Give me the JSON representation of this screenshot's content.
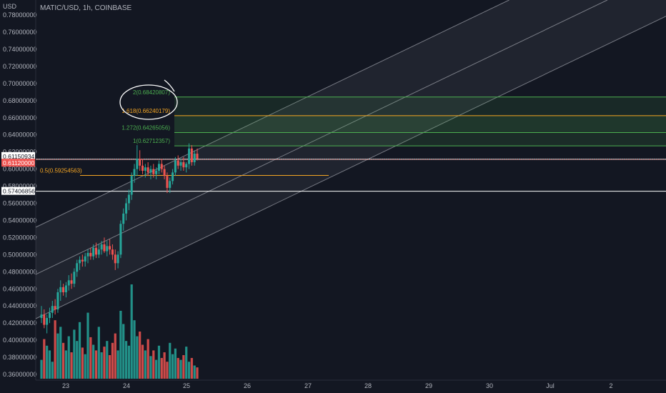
{
  "header": {
    "symbol": "MATIC/USD, 1h, COINBASE",
    "currency": "USD"
  },
  "colors": {
    "background": "#131722",
    "up": "#26a69a",
    "down": "#ef5350",
    "channel": "#d1d4dc",
    "fib_green": "#4caf50",
    "fib_orange": "#f5a623",
    "axis_text": "#b2b5be"
  },
  "chart_data": {
    "type": "candlestick",
    "ylim": [
      0.355,
      0.785
    ],
    "y_ticks": [
      "0.78000000",
      "0.76000000",
      "0.74000000",
      "0.72000000",
      "0.70000000",
      "0.68000000",
      "0.66000000",
      "0.64000000",
      "0.62000000",
      "0.60000000",
      "0.58000000",
      "0.56000000",
      "0.54000000",
      "0.52000000",
      "0.50000000",
      "0.48000000",
      "0.46000000",
      "0.44000000",
      "0.42000000",
      "0.40000000",
      "0.38000000",
      "0.36000000"
    ],
    "x_ticks": [
      "23",
      "24",
      "25",
      "26",
      "27",
      "28",
      "29",
      "30",
      "Jul",
      "2"
    ],
    "price_labels": [
      {
        "text": "0.61150934",
        "style": "white"
      },
      {
        "text": "0.61120000",
        "style": "red"
      },
      {
        "text": "0.57406856",
        "style": "white"
      }
    ],
    "fib_levels": [
      {
        "label": "2(0.68420807)",
        "value": 0.68420807,
        "color": "green"
      },
      {
        "label": "1.618(0.66240179)",
        "value": 0.66240179,
        "color": "orange"
      },
      {
        "label": "1.272(0.64265056)",
        "value": 0.64265056,
        "color": "green"
      },
      {
        "label": "1(0.62712357)",
        "value": 0.62712357,
        "color": "green"
      },
      {
        "label": "0.5(0.59254563)",
        "value": 0.59254563,
        "color": "orange"
      }
    ],
    "horizontal_lines": [
      0.61150934,
      0.57406856
    ],
    "candles": [
      [
        0.426,
        0.44,
        0.42,
        0.43
      ],
      [
        0.43,
        0.436,
        0.414,
        0.418
      ],
      [
        0.418,
        0.43,
        0.408,
        0.426
      ],
      [
        0.426,
        0.438,
        0.42,
        0.432
      ],
      [
        0.432,
        0.446,
        0.426,
        0.44
      ],
      [
        0.44,
        0.448,
        0.43,
        0.436
      ],
      [
        0.436,
        0.46,
        0.432,
        0.456
      ],
      [
        0.456,
        0.47,
        0.446,
        0.462
      ],
      [
        0.462,
        0.466,
        0.452,
        0.456
      ],
      [
        0.456,
        0.468,
        0.45,
        0.464
      ],
      [
        0.464,
        0.476,
        0.458,
        0.47
      ],
      [
        0.47,
        0.478,
        0.46,
        0.466
      ],
      [
        0.466,
        0.484,
        0.462,
        0.48
      ],
      [
        0.48,
        0.494,
        0.474,
        0.49
      ],
      [
        0.49,
        0.498,
        0.482,
        0.494
      ],
      [
        0.494,
        0.5,
        0.486,
        0.492
      ],
      [
        0.492,
        0.502,
        0.486,
        0.498
      ],
      [
        0.498,
        0.506,
        0.49,
        0.502
      ],
      [
        0.502,
        0.508,
        0.494,
        0.498
      ],
      [
        0.498,
        0.512,
        0.494,
        0.508
      ],
      [
        0.508,
        0.514,
        0.496,
        0.5
      ],
      [
        0.5,
        0.512,
        0.496,
        0.506
      ],
      [
        0.506,
        0.516,
        0.5,
        0.512
      ],
      [
        0.512,
        0.52,
        0.502,
        0.504
      ],
      [
        0.504,
        0.516,
        0.498,
        0.51
      ],
      [
        0.51,
        0.518,
        0.5,
        0.506
      ],
      [
        0.506,
        0.512,
        0.494,
        0.5
      ],
      [
        0.5,
        0.506,
        0.482,
        0.49
      ],
      [
        0.49,
        0.504,
        0.484,
        0.5
      ],
      [
        0.5,
        0.54,
        0.496,
        0.536
      ],
      [
        0.536,
        0.554,
        0.528,
        0.548
      ],
      [
        0.548,
        0.566,
        0.54,
        0.56
      ],
      [
        0.56,
        0.576,
        0.552,
        0.57
      ],
      [
        0.57,
        0.596,
        0.564,
        0.592
      ],
      [
        0.592,
        0.606,
        0.584,
        0.6
      ],
      [
        0.6,
        0.628,
        0.592,
        0.612
      ],
      [
        0.612,
        0.622,
        0.598,
        0.604
      ],
      [
        0.604,
        0.612,
        0.594,
        0.598
      ],
      [
        0.598,
        0.606,
        0.59,
        0.602
      ],
      [
        0.602,
        0.608,
        0.592,
        0.596
      ],
      [
        0.596,
        0.604,
        0.588,
        0.6
      ],
      [
        0.6,
        0.606,
        0.59,
        0.594
      ],
      [
        0.594,
        0.602,
        0.588,
        0.598
      ],
      [
        0.598,
        0.61,
        0.594,
        0.606
      ],
      [
        0.606,
        0.612,
        0.596,
        0.6
      ],
      [
        0.6,
        0.604,
        0.588,
        0.592
      ],
      [
        0.592,
        0.596,
        0.572,
        0.578
      ],
      [
        0.578,
        0.59,
        0.572,
        0.586
      ],
      [
        0.586,
        0.6,
        0.582,
        0.596
      ],
      [
        0.596,
        0.614,
        0.592,
        0.61
      ],
      [
        0.61,
        0.616,
        0.6,
        0.604
      ],
      [
        0.604,
        0.612,
        0.598,
        0.608
      ],
      [
        0.608,
        0.614,
        0.598,
        0.602
      ],
      [
        0.602,
        0.608,
        0.596,
        0.606
      ],
      [
        0.606,
        0.63,
        0.6,
        0.624
      ],
      [
        0.624,
        0.628,
        0.604,
        0.608
      ],
      [
        0.608,
        0.622,
        0.604,
        0.618
      ],
      [
        0.618,
        0.624,
        0.61,
        0.612
      ]
    ],
    "volumes": [
      0.2,
      0.42,
      0.35,
      0.3,
      0.18,
      0.62,
      0.48,
      0.55,
      0.38,
      0.3,
      0.45,
      0.28,
      0.52,
      0.4,
      0.6,
      0.33,
      0.26,
      0.7,
      0.44,
      0.36,
      0.3,
      0.55,
      0.28,
      0.34,
      0.4,
      0.25,
      0.38,
      0.48,
      0.3,
      0.72,
      0.58,
      0.4,
      0.35,
      1.0,
      0.62,
      0.45,
      0.5,
      0.36,
      0.3,
      0.42,
      0.24,
      0.3,
      0.2,
      0.35,
      0.22,
      0.28,
      0.18,
      0.38,
      0.26,
      0.32,
      0.22,
      0.2,
      0.25,
      0.34,
      0.18,
      0.22,
      0.14,
      0.12
    ]
  }
}
